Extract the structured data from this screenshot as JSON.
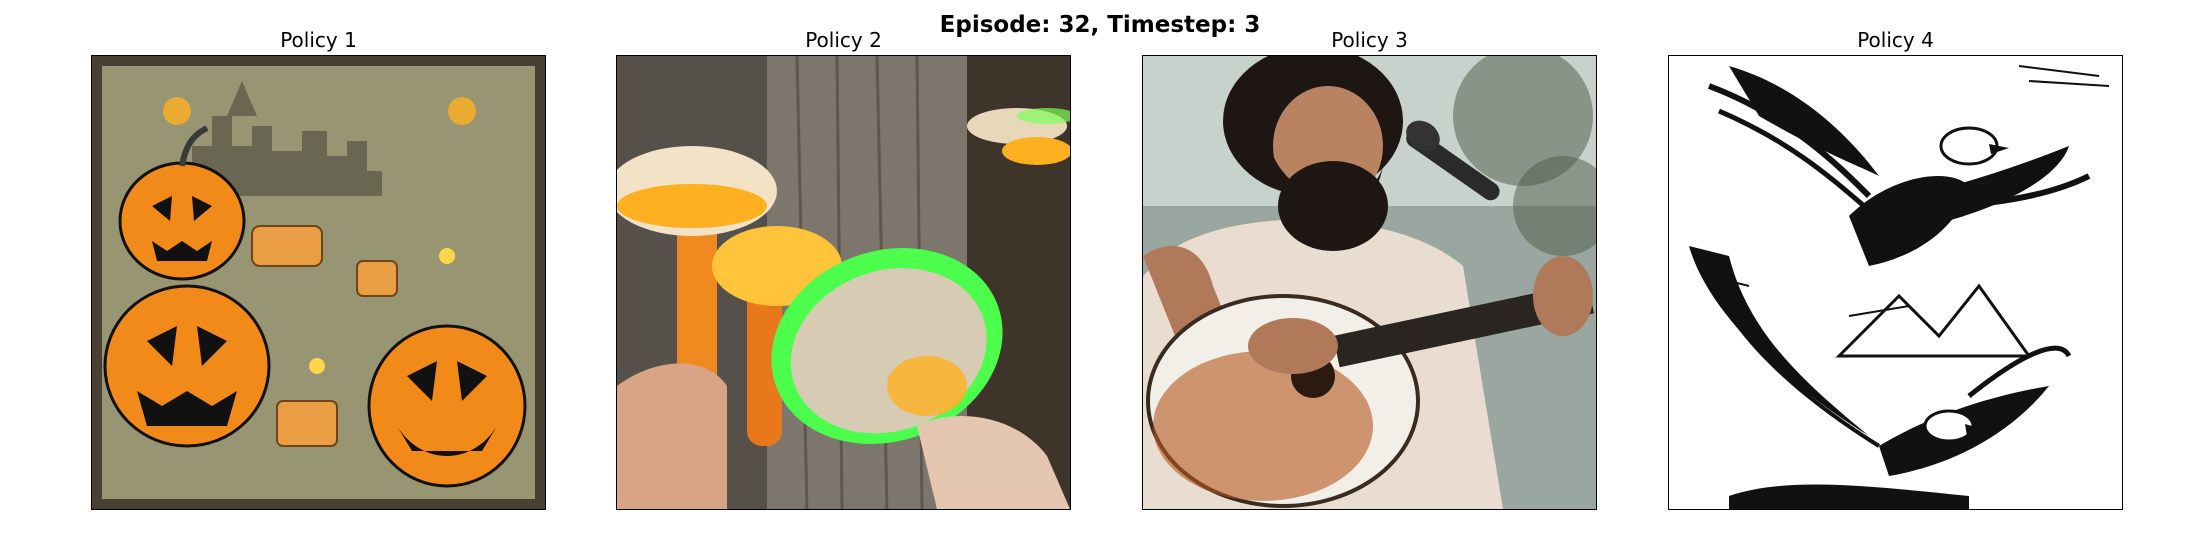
{
  "figure": {
    "title": "Episode: 32, Timestep: 3"
  },
  "panels": [
    {
      "title": "Policy 1",
      "image_subject": "halloween-pumpkins-image"
    },
    {
      "title": "Policy 2",
      "image_subject": "glowing-mushrooms-image"
    },
    {
      "title": "Policy 3",
      "image_subject": "guitarist-singer-image"
    },
    {
      "title": "Policy 4",
      "image_subject": "eagles-ink-drawing-image"
    }
  ],
  "colors": {
    "pumpkin_orange": "#f28a1a",
    "parchment": "#8c8a6a",
    "bark": "#6b6258",
    "mushroom_glow": "#ffb020",
    "green_glow": "#4dff4d",
    "ink": "#111111"
  }
}
